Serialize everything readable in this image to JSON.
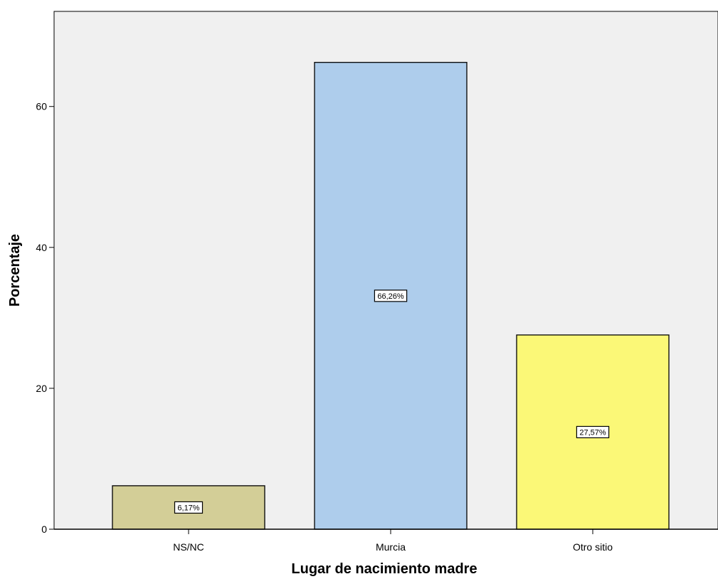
{
  "chart_data": {
    "type": "bar",
    "title": "",
    "xlabel": "Lugar de nacimiento madre",
    "ylabel": "Porcentaje",
    "categories": [
      "NS/NC",
      "Murcia",
      "Otro sitio"
    ],
    "values": [
      6.17,
      66.26,
      27.57
    ],
    "data_labels": [
      "6,17%",
      "66,26%",
      "27,57%"
    ],
    "bar_colors": [
      "#d3ce97",
      "#aecdec",
      "#fbf877"
    ],
    "plot_background": "#f0f0f0",
    "yticks": [
      0,
      20,
      40,
      60
    ],
    "ytick_labels": [
      "0",
      "20",
      "40",
      "60"
    ],
    "ylim": [
      0,
      73.5
    ],
    "grid": false,
    "legend": "none"
  }
}
